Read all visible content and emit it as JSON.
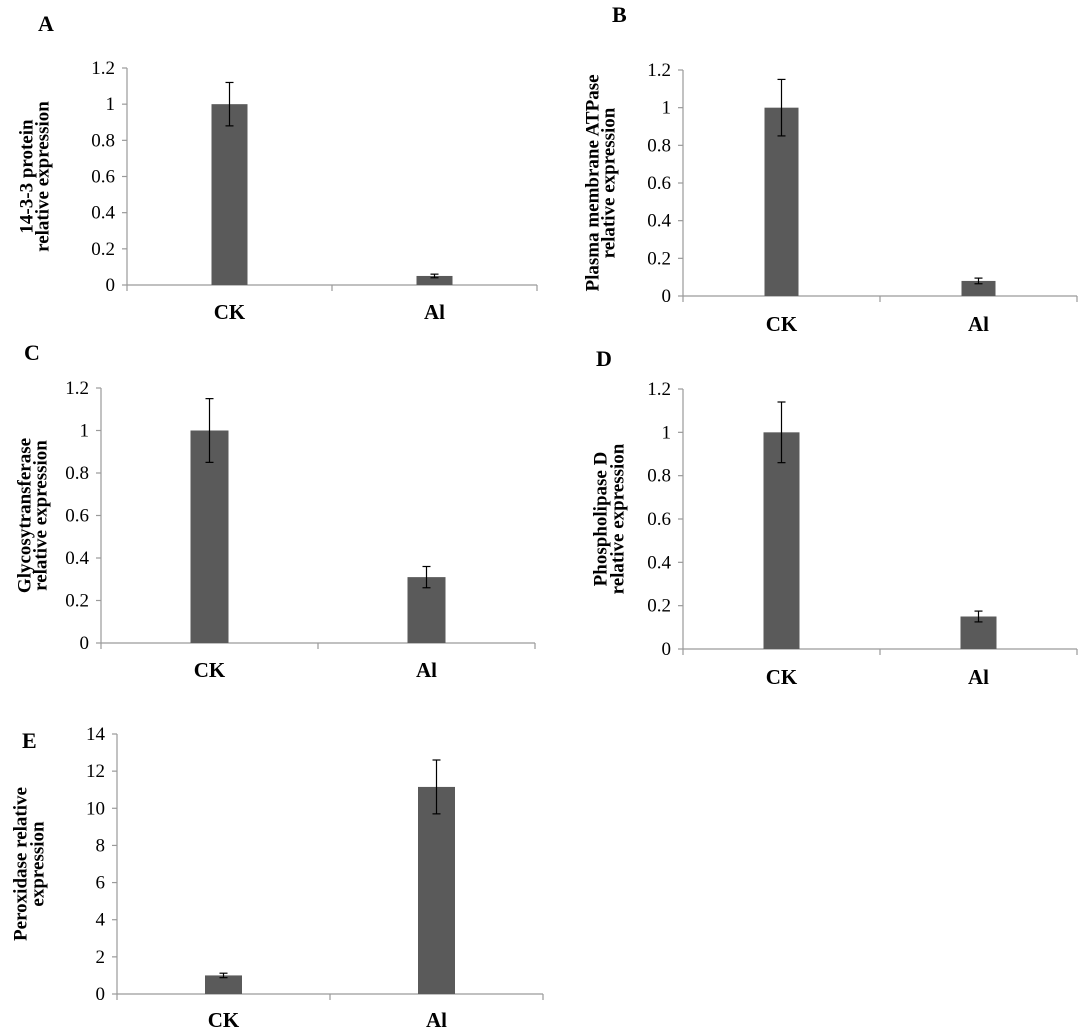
{
  "colors": {
    "bar": "#5a5a5a",
    "axis": "#9a9a9a",
    "text": "#000000",
    "background": "#ffffff"
  },
  "chart_data": [
    {
      "panel": "A",
      "type": "bar",
      "categories": [
        "CK",
        "Al"
      ],
      "values": [
        1.0,
        0.05
      ],
      "errors": [
        0.12,
        0.01
      ],
      "ylabel": [
        "14-3-3 protein",
        "relative expression"
      ],
      "xlabel": "",
      "ylim": [
        0,
        1.2
      ],
      "yticks": [
        "0",
        "0.2",
        "0.4",
        "0.6",
        "0.8",
        "1",
        "1.2"
      ],
      "grid": false
    },
    {
      "panel": "B",
      "type": "bar",
      "categories": [
        "CK",
        "Al"
      ],
      "values": [
        1.0,
        0.08
      ],
      "errors": [
        0.15,
        0.015
      ],
      "ylabel": [
        "Plasma membrane ATPase",
        "relative expression"
      ],
      "xlabel": "",
      "ylim": [
        0,
        1.2
      ],
      "yticks": [
        "0",
        "0.2",
        "0.4",
        "0.6",
        "0.8",
        "1",
        "1.2"
      ],
      "grid": false
    },
    {
      "panel": "C",
      "type": "bar",
      "categories": [
        "CK",
        "Al"
      ],
      "values": [
        1.0,
        0.31
      ],
      "errors": [
        0.15,
        0.05
      ],
      "ylabel": [
        "Glycosytransferase",
        "relative expression"
      ],
      "xlabel": "",
      "ylim": [
        0,
        1.2
      ],
      "yticks": [
        "0",
        "0.2",
        "0.4",
        "0.6",
        "0.8",
        "1",
        "1.2"
      ],
      "grid": false
    },
    {
      "panel": "D",
      "type": "bar",
      "categories": [
        "CK",
        "Al"
      ],
      "values": [
        1.0,
        0.15
      ],
      "errors": [
        0.14,
        0.025
      ],
      "ylabel": [
        "Phospholipase D",
        "relative expression"
      ],
      "xlabel": "",
      "ylim": [
        0,
        1.2
      ],
      "yticks": [
        "0",
        "0.2",
        "0.4",
        "0.6",
        "0.8",
        "1",
        "1.2"
      ],
      "grid": false
    },
    {
      "panel": "E",
      "type": "bar",
      "categories": [
        "CK",
        "Al"
      ],
      "values": [
        1.0,
        11.15
      ],
      "errors": [
        0.12,
        1.45
      ],
      "ylabel": [
        "Peroxidase relative",
        "expression"
      ],
      "xlabel": "",
      "ylim": [
        0,
        14
      ],
      "yticks": [
        "0",
        "2",
        "4",
        "6",
        "8",
        "10",
        "12",
        "14"
      ],
      "grid": false
    }
  ]
}
